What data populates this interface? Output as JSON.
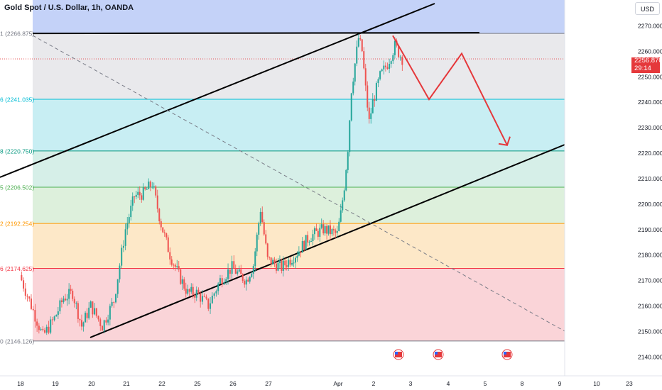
{
  "header": {
    "title": "Gold Spot / U.S. Dollar, 1h, OANDA",
    "currency": "USD"
  },
  "price_tag": {
    "price": "2256.870",
    "countdown": "29:14",
    "color": "#e5383b"
  },
  "colors": {
    "bull": "#26a69a",
    "bear": "#ef5350",
    "trendline": "#000000",
    "projection": "#e5383b"
  },
  "fib_levels": [
    {
      "label": "1 (2266.875)",
      "price": 2266.875,
      "color": "#787b86",
      "fill": "#e9e9ec",
      "fill_top": "#c4d2f8"
    },
    {
      "label": "6 (2241.035)",
      "price": 2241.035,
      "color": "#00bcd4",
      "fill": "#c8eef3"
    },
    {
      "label": "8 (2220.750)",
      "price": 2220.75,
      "color": "#089981",
      "fill": "#d6efe8"
    },
    {
      "label": "5 (2206.502)",
      "price": 2206.502,
      "color": "#4caf50",
      "fill": "#ddf0dc"
    },
    {
      "label": "2 (2192.254)",
      "price": 2192.254,
      "color": "#ff9800",
      "fill": "#fde8c8"
    },
    {
      "label": "6 (2174.625)",
      "price": 2174.625,
      "color": "#f23645",
      "fill": "#fad4d8"
    },
    {
      "label": "0 (2146.126)",
      "price": 2146.126,
      "color": "#787b86"
    }
  ],
  "chart_data": {
    "type": "candlestick",
    "title": "Gold Spot / U.S. Dollar, 1h, OANDA",
    "ylim": [
      2133,
      2280
    ],
    "y_ticks": [
      "2270.000",
      "2260.000",
      "2250.000",
      "2240.000",
      "2230.000",
      "2220.000",
      "2210.000",
      "2200.000",
      "2190.000",
      "2180.000",
      "2170.000",
      "2160.000",
      "2150.000",
      "2140.000"
    ],
    "x_ticks": [
      "18",
      "19",
      "20",
      "21",
      "22",
      "25",
      "26",
      "27",
      "Apr",
      "2",
      "3",
      "4",
      "5",
      "8",
      "9",
      "10",
      "23"
    ],
    "close_path": [
      [
        "18",
        2172
      ],
      [
        "18",
        2160
      ],
      [
        "18",
        2148
      ],
      [
        "19",
        2155
      ],
      [
        "19",
        2163
      ],
      [
        "19",
        2165
      ],
      [
        "19",
        2152
      ],
      [
        "20",
        2160
      ],
      [
        "20",
        2152
      ],
      [
        "20",
        2162
      ],
      [
        "21",
        2190
      ],
      [
        "21",
        2203
      ],
      [
        "21",
        2204
      ],
      [
        "21",
        2208
      ],
      [
        "22",
        2192
      ],
      [
        "22",
        2180
      ],
      [
        "22",
        2172
      ],
      [
        "22",
        2165
      ],
      [
        "25",
        2165
      ],
      [
        "25",
        2160
      ],
      [
        "25",
        2170
      ],
      [
        "26",
        2175
      ],
      [
        "26",
        2172
      ],
      [
        "26",
        2170
      ],
      [
        "26",
        2176
      ],
      [
        "26",
        2198
      ],
      [
        "27",
        2178
      ],
      [
        "27",
        2175
      ],
      [
        "27",
        2180
      ],
      [
        "27",
        2187
      ],
      [
        "27",
        2190
      ],
      [
        "Apr",
        2188
      ],
      [
        "Apr",
        2196
      ],
      [
        "Apr",
        2207
      ],
      [
        "Apr",
        2222
      ],
      [
        "Apr",
        2245
      ],
      [
        "Apr",
        2255
      ],
      [
        "Apr",
        2265
      ],
      [
        "Apr",
        2260
      ],
      [
        "Apr",
        2245
      ],
      [
        "Apr",
        2232
      ],
      [
        "2",
        2240
      ],
      [
        "2",
        2250
      ],
      [
        "2",
        2255
      ],
      [
        "2",
        2262
      ],
      [
        "2",
        2257
      ]
    ],
    "projection": [
      {
        "x": "3",
        "y": 2266
      },
      {
        "x": "4",
        "y": 2241
      },
      {
        "x": "5",
        "y": 2259
      },
      {
        "x": "8",
        "y": 2223
      }
    ],
    "event_markers": [
      "2",
      "4",
      "8"
    ]
  }
}
